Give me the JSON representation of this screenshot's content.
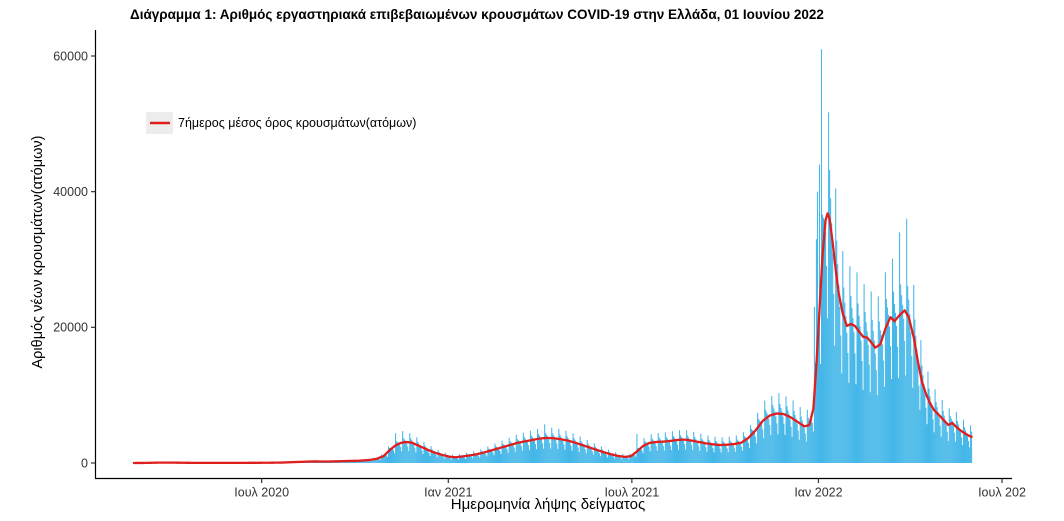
{
  "chart_data": {
    "type": "bar",
    "title": "Διάγραμμα 1: Αριθμός εργαστηριακά επιβεβαιωμένων κρουσμάτων COVID-19 στην Ελλάδα, 01 Ιουνίου 2022",
    "xlabel": "Ημερομηνία λήψης δείγματος",
    "ylabel": "Αριθμός νέων κρουσμάτων(ατόμων)",
    "legend": {
      "label": "7ήμερος μέσος όρος κρουσμάτων(ατόμων)",
      "position": "top-left inside"
    },
    "colors": {
      "bar": "#45b7e8",
      "line": "#e01e1e",
      "axis": "#000000",
      "tick_text": "#333333",
      "legend_key_bg": "#ededed"
    },
    "grid": "off",
    "x_domain": [
      "2020-02-26",
      "2022-06-01"
    ],
    "ylim": [
      0,
      62000
    ],
    "y_axis": {
      "ticks": [
        {
          "label": "0",
          "value": 0
        },
        {
          "label": "20000",
          "value": 20000
        },
        {
          "label": "40000",
          "value": 40000
        },
        {
          "label": "60000",
          "value": 60000
        }
      ]
    },
    "x_axis": {
      "ticks": [
        {
          "label": "Ιουλ 2020",
          "date": "2020-07-01"
        },
        {
          "label": "Ιαν 2021",
          "date": "2021-01-01"
        },
        {
          "label": "Ιουλ 2021",
          "date": "2021-07-01"
        },
        {
          "label": "Ιαν 2022",
          "date": "2022-01-01"
        },
        {
          "label": "Ιουλ 202",
          "date": "2022-07-01"
        }
      ]
    },
    "series": [
      {
        "name": "7-day moving average (red line), control points [date, cases]",
        "type": "line",
        "points": [
          [
            "2020-02-26",
            3
          ],
          [
            "2020-03-10",
            15
          ],
          [
            "2020-03-22",
            60
          ],
          [
            "2020-04-05",
            55
          ],
          [
            "2020-04-20",
            25
          ],
          [
            "2020-05-05",
            18
          ],
          [
            "2020-05-20",
            15
          ],
          [
            "2020-06-05",
            20
          ],
          [
            "2020-06-20",
            25
          ],
          [
            "2020-07-05",
            35
          ],
          [
            "2020-07-20",
            60
          ],
          [
            "2020-08-05",
            150
          ],
          [
            "2020-08-20",
            230
          ],
          [
            "2020-09-05",
            220
          ],
          [
            "2020-09-20",
            280
          ],
          [
            "2020-10-05",
            340
          ],
          [
            "2020-10-15",
            440
          ],
          [
            "2020-10-22",
            600
          ],
          [
            "2020-10-29",
            1000
          ],
          [
            "2020-11-05",
            2000
          ],
          [
            "2020-11-10",
            2600
          ],
          [
            "2020-11-15",
            2950
          ],
          [
            "2020-11-20",
            3100
          ],
          [
            "2020-11-26",
            3000
          ],
          [
            "2020-12-02",
            2600
          ],
          [
            "2020-12-08",
            2200
          ],
          [
            "2020-12-14",
            1800
          ],
          [
            "2020-12-20",
            1450
          ],
          [
            "2020-12-27",
            1150
          ],
          [
            "2021-01-03",
            900
          ],
          [
            "2021-01-08",
            850
          ],
          [
            "2021-01-14",
            950
          ],
          [
            "2021-01-21",
            1100
          ],
          [
            "2021-01-28",
            1250
          ],
          [
            "2021-02-04",
            1500
          ],
          [
            "2021-02-11",
            1800
          ],
          [
            "2021-02-18",
            2100
          ],
          [
            "2021-02-25",
            2400
          ],
          [
            "2021-03-04",
            2700
          ],
          [
            "2021-03-11",
            3000
          ],
          [
            "2021-03-18",
            3200
          ],
          [
            "2021-03-25",
            3400
          ],
          [
            "2021-04-01",
            3600
          ],
          [
            "2021-04-08",
            3700
          ],
          [
            "2021-04-15",
            3650
          ],
          [
            "2021-04-22",
            3500
          ],
          [
            "2021-04-29",
            3300
          ],
          [
            "2021-05-06",
            3000
          ],
          [
            "2021-05-13",
            2650
          ],
          [
            "2021-05-20",
            2300
          ],
          [
            "2021-05-27",
            1950
          ],
          [
            "2021-06-03",
            1600
          ],
          [
            "2021-06-10",
            1300
          ],
          [
            "2021-06-17",
            1050
          ],
          [
            "2021-06-24",
            900
          ],
          [
            "2021-06-30",
            1000
          ],
          [
            "2021-07-06",
            1700
          ],
          [
            "2021-07-12",
            2500
          ],
          [
            "2021-07-18",
            2950
          ],
          [
            "2021-07-25",
            3100
          ],
          [
            "2021-08-01",
            3150
          ],
          [
            "2021-08-08",
            3250
          ],
          [
            "2021-08-15",
            3400
          ],
          [
            "2021-08-22",
            3450
          ],
          [
            "2021-08-29",
            3300
          ],
          [
            "2021-09-05",
            3100
          ],
          [
            "2021-09-12",
            2900
          ],
          [
            "2021-09-19",
            2750
          ],
          [
            "2021-09-26",
            2650
          ],
          [
            "2021-10-03",
            2700
          ],
          [
            "2021-10-10",
            2800
          ],
          [
            "2021-10-17",
            3000
          ],
          [
            "2021-10-24",
            3700
          ],
          [
            "2021-10-31",
            4800
          ],
          [
            "2021-11-07",
            6200
          ],
          [
            "2021-11-14",
            7000
          ],
          [
            "2021-11-21",
            7300
          ],
          [
            "2021-11-28",
            7200
          ],
          [
            "2021-12-05",
            6700
          ],
          [
            "2021-12-12",
            6000
          ],
          [
            "2021-12-18",
            5400
          ],
          [
            "2021-12-23",
            5600
          ],
          [
            "2021-12-27",
            8000
          ],
          [
            "2021-12-30",
            14500
          ],
          [
            "2022-01-02",
            22500
          ],
          [
            "2022-01-05",
            30500
          ],
          [
            "2022-01-08",
            35800
          ],
          [
            "2022-01-10",
            36800
          ],
          [
            "2022-01-12",
            36000
          ],
          [
            "2022-01-15",
            32500
          ],
          [
            "2022-01-18",
            28500
          ],
          [
            "2022-01-21",
            25000
          ],
          [
            "2022-01-25",
            22000
          ],
          [
            "2022-01-29",
            20200
          ],
          [
            "2022-02-02",
            20500
          ],
          [
            "2022-02-06",
            20200
          ],
          [
            "2022-02-10",
            19400
          ],
          [
            "2022-02-14",
            18600
          ],
          [
            "2022-02-18",
            18500
          ],
          [
            "2022-02-22",
            17800
          ],
          [
            "2022-02-26",
            17000
          ],
          [
            "2022-03-03",
            17500
          ],
          [
            "2022-03-08",
            19800
          ],
          [
            "2022-03-13",
            21500
          ],
          [
            "2022-03-17",
            20900
          ],
          [
            "2022-03-22",
            21800
          ],
          [
            "2022-03-27",
            22500
          ],
          [
            "2022-03-31",
            21500
          ],
          [
            "2022-04-05",
            18500
          ],
          [
            "2022-04-09",
            15000
          ],
          [
            "2022-04-13",
            12000
          ],
          [
            "2022-04-17",
            10200
          ],
          [
            "2022-04-21",
            8800
          ],
          [
            "2022-04-25",
            7800
          ],
          [
            "2022-04-29",
            7200
          ],
          [
            "2022-05-04",
            6400
          ],
          [
            "2022-05-09",
            5600
          ],
          [
            "2022-05-13",
            5900
          ],
          [
            "2022-05-17",
            5300
          ],
          [
            "2022-05-21",
            4800
          ],
          [
            "2022-05-25",
            4400
          ],
          [
            "2022-05-29",
            4050
          ],
          [
            "2022-06-01",
            3850
          ]
        ]
      },
      {
        "name": "Daily confirmed cases (light-blue bars): daily value = avg(date) × weekly_reporting_pattern, plus notable spike days below",
        "type": "bar",
        "weekly_pattern_sun_to_sat": [
          0.8,
          0.58,
          1.42,
          1.2,
          1.12,
          1.05,
          0.95
        ],
        "spike_days": [
          [
            "2020-11-10",
            4400
          ],
          [
            "2020-11-17",
            4700
          ],
          [
            "2020-11-24",
            4400
          ],
          [
            "2021-04-06",
            5700
          ],
          [
            "2021-07-06",
            4300
          ],
          [
            "2021-10-26",
            5600
          ],
          [
            "2021-11-09",
            9200
          ],
          [
            "2021-11-16",
            9900
          ],
          [
            "2021-11-23",
            10300
          ],
          [
            "2021-11-30",
            9800
          ],
          [
            "2021-12-28",
            23000
          ],
          [
            "2021-12-30",
            33000
          ],
          [
            "2021-12-31",
            40000
          ],
          [
            "2022-01-02",
            44000
          ],
          [
            "2022-01-04",
            61000
          ],
          [
            "2022-03-22",
            34000
          ],
          [
            "2022-03-29",
            36000
          ]
        ]
      }
    ]
  }
}
